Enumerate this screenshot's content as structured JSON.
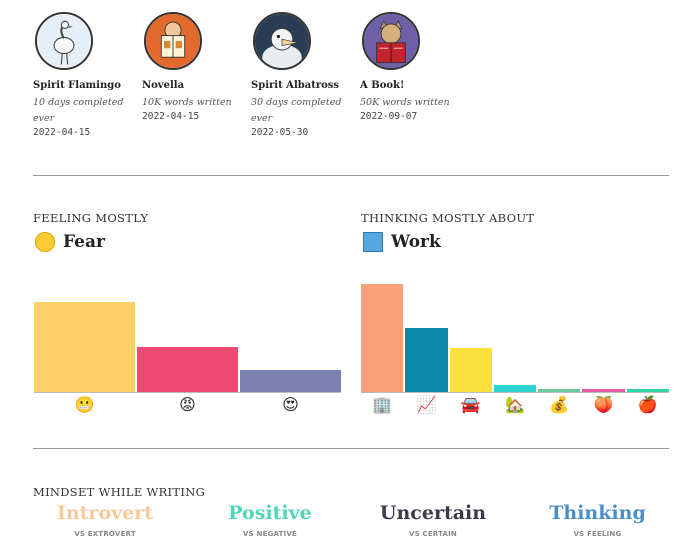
{
  "badges": [
    {
      "title": "Spirit Flamingo",
      "sub": "10 days completed ever",
      "date": "2022-04-15",
      "icon": "flamingo-icon"
    },
    {
      "title": "Novella",
      "sub": "10K words written",
      "date": "2022-04-15",
      "icon": "book-reader-icon"
    },
    {
      "title": "Spirit Albatross",
      "sub": "30 days completed ever",
      "date": "2022-05-30",
      "icon": "albatross-icon"
    },
    {
      "title": "A Book!",
      "sub": "50K words written",
      "date": "2022-09-07",
      "icon": "cat-reading-icon"
    }
  ],
  "feeling": {
    "label": "FEELING MOSTLY",
    "value": "Fear",
    "bars": [
      {
        "emoji": "😬",
        "icon": "grimacing-face-icon",
        "value": 0.78,
        "color": "#fdd068"
      },
      {
        "emoji": "😡",
        "icon": "angry-face-icon",
        "value": 0.39,
        "color": "#ee4b73"
      },
      {
        "emoji": "😍",
        "icon": "heart-eyes-face-icon",
        "value": 0.19,
        "color": "#7e82b3"
      }
    ]
  },
  "thinking": {
    "label": "THINKING MOSTLY ABOUT",
    "value": "Work",
    "bars": [
      {
        "emoji": "🏢",
        "icon": "office-building-icon",
        "value": 0.94,
        "color": "#f8a07a"
      },
      {
        "emoji": "📈",
        "icon": "chart-increasing-icon",
        "value": 0.56,
        "color": "#0a8aa8"
      },
      {
        "emoji": "🚘",
        "icon": "car-icon",
        "value": 0.38,
        "color": "#fce13c"
      },
      {
        "emoji": "🏡",
        "icon": "house-icon",
        "value": 0.06,
        "color": "#2cd5d0"
      },
      {
        "emoji": "💰",
        "icon": "money-bag-icon",
        "value": 0.02,
        "color": "#6fc8a0"
      },
      {
        "emoji": "🍑",
        "icon": "peach-icon",
        "value": 0.02,
        "color": "#e45aa6"
      },
      {
        "emoji": "🍎",
        "icon": "apple-icon",
        "value": 0.02,
        "color": "#32d6a6"
      }
    ]
  },
  "mindset": {
    "label": "MINDSET WHILE WRITING",
    "items": [
      {
        "word": "Introvert",
        "vs": "VS EXTROVERT",
        "color": "#f8c99a"
      },
      {
        "word": "Positive",
        "vs": "VS NEGATIVE",
        "color": "#4fd6b4"
      },
      {
        "word": "Uncertain",
        "vs": "VS CERTAIN",
        "color": "#3a3a4a"
      },
      {
        "word": "Thinking",
        "vs": "VS FEELING",
        "color": "#4a8ec8"
      }
    ]
  }
}
